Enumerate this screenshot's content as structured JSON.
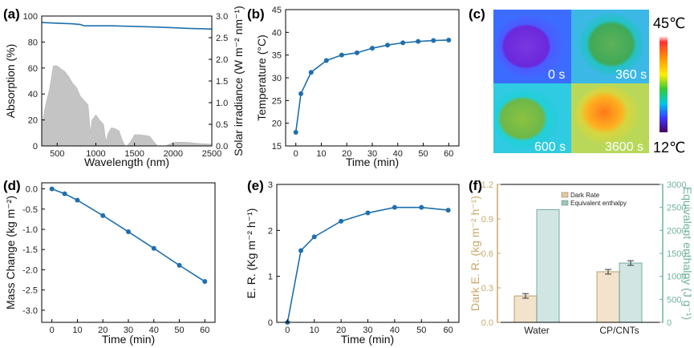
{
  "colors": {
    "line": "#1f6fae",
    "fill_spectrum": "#c4c4c4",
    "dark_axis": "#c8a86a",
    "enthalpy_axis": "#6fb39a",
    "bar_dark": "#e8c79a",
    "bar_enthalpy": "#98c8c0"
  },
  "panels": {
    "a": {
      "label": "(a)"
    },
    "b": {
      "label": "(b)"
    },
    "c": {
      "label": "(c)",
      "scale_max": "45℃",
      "scale_min": "12℃",
      "times": [
        "0 s",
        "360 s",
        "600 s",
        "3600 s"
      ]
    },
    "d": {
      "label": "(d)"
    },
    "e": {
      "label": "(e)"
    },
    "f": {
      "label": "(f)"
    }
  },
  "chart_data": [
    {
      "id": "a",
      "type": "line+area",
      "xlabel": "Wavelength (nm)",
      "ylabel": "Absorption (%)",
      "ylabel_right": "Solar irradiance (W m⁻² nm⁻¹)",
      "xlim": [
        300,
        2500
      ],
      "ylim": [
        0,
        100
      ],
      "ylim_right": [
        0,
        3.0
      ],
      "xticks": [
        "500",
        "1000",
        "1500",
        "2000",
        "2500"
      ],
      "yticks": [
        "0",
        "20",
        "40",
        "60",
        "80",
        "100"
      ],
      "yticks_right": [
        "0.0",
        "0.5",
        "1.0",
        "1.5",
        "2.0",
        "2.5",
        "3.0"
      ],
      "series": [
        {
          "name": "Absorption",
          "x": [
            300,
            500,
            700,
            800,
            850,
            1000,
            1200,
            1500,
            1800,
            2000,
            2200,
            2500
          ],
          "y": [
            95,
            94.5,
            94,
            93.5,
            92.5,
            92.5,
            92.5,
            92,
            91.5,
            91,
            90.5,
            90
          ]
        },
        {
          "name": "Solar irradiance",
          "x": [
            300,
            350,
            400,
            450,
            500,
            550,
            600,
            650,
            700,
            750,
            800,
            850,
            900,
            930,
            950,
            1000,
            1050,
            1100,
            1130,
            1160,
            1200,
            1250,
            1300,
            1350,
            1380,
            1400,
            1450,
            1500,
            1550,
            1600,
            1650,
            1700,
            1750,
            1800,
            1850,
            1900,
            1950,
            2000,
            2100,
            2200,
            2300,
            2400,
            2500
          ],
          "y": [
            0.45,
            0.95,
            1.3,
            1.85,
            1.85,
            1.78,
            1.72,
            1.6,
            1.45,
            1.35,
            1.15,
            1.05,
            0.95,
            0.3,
            0.6,
            0.72,
            0.6,
            0.5,
            0.1,
            0.3,
            0.42,
            0.4,
            0.35,
            0.1,
            0.0,
            0.0,
            0.1,
            0.26,
            0.26,
            0.25,
            0.24,
            0.22,
            0.1,
            0.0,
            0.0,
            0.0,
            0.04,
            0.08,
            0.09,
            0.08,
            0.06,
            0.05,
            0.04
          ]
        }
      ]
    },
    {
      "id": "b",
      "type": "line",
      "xlabel": "Time (min)",
      "ylabel": "Temperature (°C)",
      "xlim": [
        -4,
        64
      ],
      "ylim": [
        15,
        45
      ],
      "xticks": [
        "0",
        "10",
        "20",
        "30",
        "40",
        "50",
        "60"
      ],
      "yticks": [
        "15",
        "20",
        "25",
        "30",
        "35",
        "40",
        "45"
      ],
      "x": [
        0,
        2,
        6,
        12,
        18,
        24,
        30,
        36,
        42,
        48,
        54,
        60
      ],
      "y": [
        18.0,
        26.5,
        31.2,
        33.8,
        35.0,
        35.5,
        36.5,
        37.2,
        37.7,
        38.0,
        38.2,
        38.3
      ]
    },
    {
      "id": "d",
      "type": "line",
      "xlabel": "Time (min)",
      "ylabel": "Mass Change  (kg m⁻²)",
      "xlim": [
        -4,
        64
      ],
      "ylim": [
        -3.3,
        0.15
      ],
      "xticks": [
        "0",
        "10",
        "20",
        "30",
        "40",
        "50",
        "60"
      ],
      "yticks": [
        "0.0",
        "-0.5",
        "-1.0",
        "-1.5",
        "-2.0",
        "-2.5",
        "-3.0"
      ],
      "x": [
        0,
        5,
        10,
        20,
        30,
        40,
        50,
        60
      ],
      "y": [
        0.0,
        -0.12,
        -0.28,
        -0.66,
        -1.06,
        -1.47,
        -1.89,
        -2.29
      ]
    },
    {
      "id": "e",
      "type": "line",
      "xlabel": "Time (min)",
      "ylabel": "E. R. (Kg m⁻² h⁻¹)",
      "xlim": [
        -4,
        64
      ],
      "ylim": [
        0,
        3
      ],
      "xticks": [
        "0",
        "10",
        "20",
        "30",
        "40",
        "50",
        "60"
      ],
      "yticks": [
        "0",
        "1",
        "2",
        "3"
      ],
      "x": [
        0,
        5,
        10,
        20,
        30,
        40,
        50,
        60
      ],
      "y": [
        0.0,
        1.56,
        1.86,
        2.2,
        2.38,
        2.5,
        2.5,
        2.44
      ]
    },
    {
      "id": "f",
      "type": "bar",
      "categories": [
        "Water",
        "CP/CNTs"
      ],
      "ylabel": "Dark E. R.  (kg m⁻² h⁻¹)",
      "ylabel_right": "Equivalent enthalpy  (J g⁻¹)",
      "ylim": [
        0,
        1.2
      ],
      "ylim_right": [
        0,
        3000
      ],
      "yticks": [
        "0.0",
        "0.3",
        "0.6",
        "0.9",
        "1.2"
      ],
      "yticks_right": [
        "0",
        "500",
        "1000",
        "1500",
        "2000",
        "2500",
        "3000"
      ],
      "legend": [
        "Dark Rate",
        "Equivalent enthalpy"
      ],
      "series": [
        {
          "name": "Dark Rate",
          "values": [
            0.23,
            0.44
          ],
          "errors": [
            0.02,
            0.02
          ]
        },
        {
          "name": "Equivalent enthalpy",
          "values": [
            2450,
            1290
          ],
          "errors": [
            0,
            50
          ]
        }
      ]
    }
  ]
}
